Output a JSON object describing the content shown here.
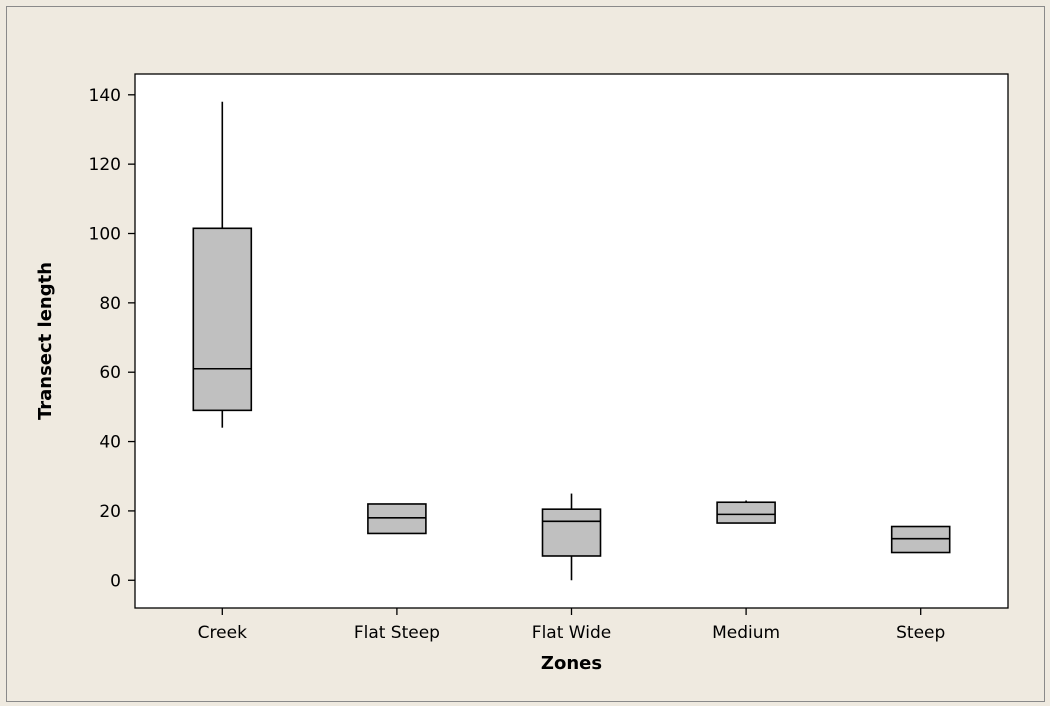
{
  "chart_data": {
    "type": "box",
    "title": "",
    "xlabel": "Zones",
    "ylabel": "Transect length",
    "ylim": [
      -8,
      146
    ],
    "yticks": [
      0,
      20,
      40,
      60,
      80,
      100,
      120,
      140
    ],
    "grid": false,
    "categories": [
      "Creek",
      "Flat Steep",
      "Flat Wide",
      "Medium",
      "Steep"
    ],
    "boxes": [
      {
        "category": "Creek",
        "min": 44,
        "q1": 49,
        "median": 61,
        "q3": 101.5,
        "max": 138
      },
      {
        "category": "Flat Steep",
        "min": 13.5,
        "q1": 13.5,
        "median": 18,
        "q3": 22,
        "max": 22
      },
      {
        "category": "Flat Wide",
        "min": 0,
        "q1": 7,
        "median": 17,
        "q3": 20.5,
        "max": 25
      },
      {
        "category": "Medium",
        "min": 16.5,
        "q1": 16.5,
        "median": 19,
        "q3": 22.5,
        "max": 23
      },
      {
        "category": "Steep",
        "min": 8,
        "q1": 8,
        "median": 12,
        "q3": 15.5,
        "max": 15.5
      }
    ],
    "colors": {
      "box_fill": "#c0c0c0",
      "stroke": "#000000",
      "plot_bg": "#ffffff",
      "figure_bg": "#efeae0"
    }
  }
}
